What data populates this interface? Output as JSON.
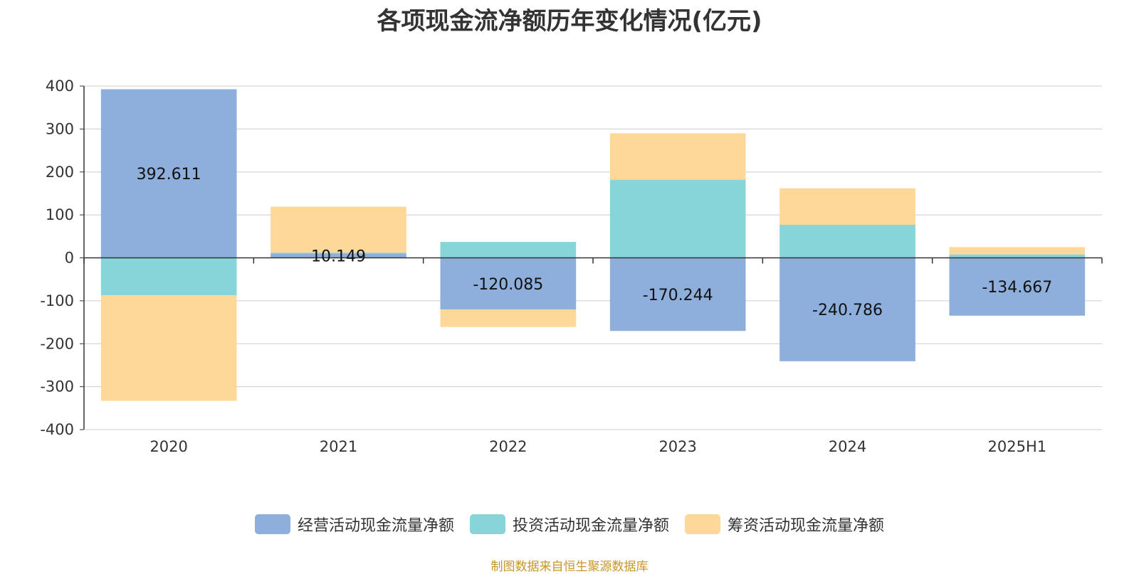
{
  "chart_data": {
    "type": "bar",
    "stacked": true,
    "title": "各项现金流净额历年变化情况(亿元)",
    "xlabel": "",
    "ylabel": "",
    "ylim": [
      -400,
      400
    ],
    "yticks": [
      400,
      300,
      200,
      100,
      0,
      -100,
      -200,
      -300,
      -400
    ],
    "categories": [
      "2020",
      "2021",
      "2022",
      "2023",
      "2024",
      "2025H1"
    ],
    "series": [
      {
        "name": "经营活动现金流量净额",
        "color": "#8eaedb",
        "values": [
          392.611,
          10.149,
          -120.085,
          -170.244,
          -240.786,
          -134.667
        ],
        "labels": [
          "392.611",
          "10.149",
          "-120.085",
          "-170.244",
          "-240.786",
          "-134.667"
        ]
      },
      {
        "name": "投资活动现金流量净额",
        "color": "#87d5d8",
        "values": [
          -87,
          2,
          37,
          182,
          77,
          8
        ]
      },
      {
        "name": "筹资活动现金流量净额",
        "color": "#fed898",
        "values": [
          -246,
          107,
          -41,
          108,
          85,
          17
        ]
      }
    ],
    "grid": true,
    "legend": "bottom"
  },
  "source_note": "制图数据来自恒生聚源数据库"
}
